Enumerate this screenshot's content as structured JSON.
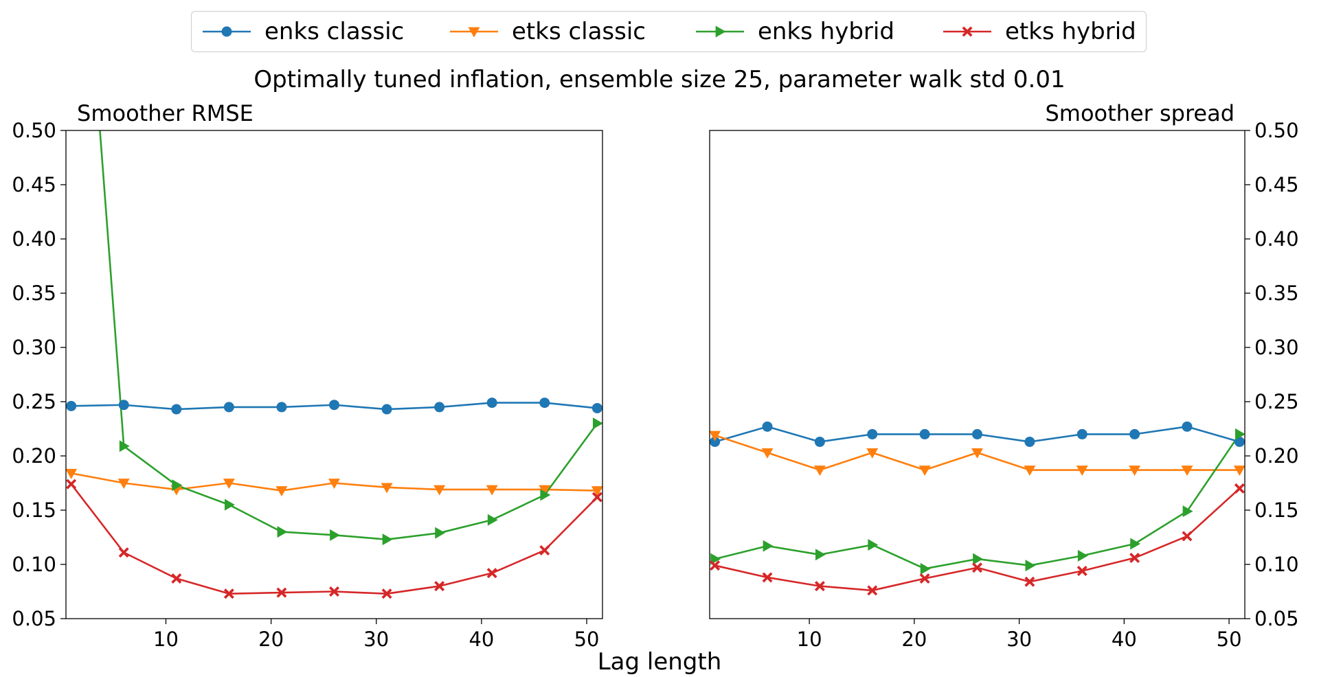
{
  "legend": [
    {
      "label": "enks classic",
      "color": "#1f77b4",
      "marker": "circle"
    },
    {
      "label": "etks classic",
      "color": "#ff7f0e",
      "marker": "triangle-down"
    },
    {
      "label": "enks hybrid",
      "color": "#2ca02c",
      "marker": "triangle-right"
    },
    {
      "label": "etks hybrid",
      "color": "#d62728",
      "marker": "x-filled"
    }
  ],
  "suptitle": "Optimally tuned inflation, ensemble size 25, parameter walk std 0.01",
  "xlabel": "Lag length",
  "chart_data": [
    {
      "type": "line",
      "title": "Smoother RMSE",
      "title_align": "left",
      "yaxis_side": "left",
      "xlabel": "Lag length",
      "ylabel": "",
      "x": [
        1,
        6,
        11,
        16,
        21,
        26,
        31,
        36,
        41,
        46,
        51
      ],
      "xlim": [
        0.5,
        51.5
      ],
      "ylim": [
        0.05,
        0.5
      ],
      "xticks": [
        10,
        20,
        30,
        40,
        50
      ],
      "yticks": [
        0.05,
        0.1,
        0.15,
        0.2,
        0.25,
        0.3,
        0.35,
        0.4,
        0.45,
        0.5
      ],
      "ytick_labels": [
        "0.05",
        "0.10",
        "0.15",
        "0.20",
        "0.25",
        "0.30",
        "0.35",
        "0.40",
        "0.45",
        "0.50"
      ],
      "grid": false,
      "series": [
        {
          "name": "enks classic",
          "values": [
            0.246,
            0.247,
            0.243,
            0.245,
            0.245,
            0.247,
            0.243,
            0.245,
            0.249,
            0.249,
            0.244
          ]
        },
        {
          "name": "etks classic",
          "values": [
            0.184,
            0.175,
            0.169,
            0.175,
            0.168,
            0.175,
            0.171,
            0.169,
            0.169,
            0.169,
            0.168
          ]
        },
        {
          "name": "enks hybrid",
          "values": [
            0.85,
            0.209,
            0.173,
            0.155,
            0.13,
            0.127,
            0.123,
            0.129,
            0.141,
            0.164,
            0.23
          ]
        },
        {
          "name": "etks hybrid",
          "values": [
            0.174,
            0.111,
            0.087,
            0.073,
            0.074,
            0.075,
            0.073,
            0.08,
            0.092,
            0.113,
            0.162
          ]
        }
      ]
    },
    {
      "type": "line",
      "title": "Smoother spread",
      "title_align": "right",
      "yaxis_side": "right",
      "xlabel": "Lag length",
      "ylabel": "",
      "x": [
        1,
        6,
        11,
        16,
        21,
        26,
        31,
        36,
        41,
        46,
        51
      ],
      "xlim": [
        0.5,
        51.5
      ],
      "ylim": [
        0.05,
        0.5
      ],
      "xticks": [
        10,
        20,
        30,
        40,
        50
      ],
      "yticks": [
        0.05,
        0.1,
        0.15,
        0.2,
        0.25,
        0.3,
        0.35,
        0.4,
        0.45,
        0.5
      ],
      "ytick_labels": [
        "0.05",
        "0.10",
        "0.15",
        "0.20",
        "0.25",
        "0.30",
        "0.35",
        "0.40",
        "0.45",
        "0.50"
      ],
      "grid": false,
      "series": [
        {
          "name": "enks classic",
          "values": [
            0.213,
            0.227,
            0.213,
            0.22,
            0.22,
            0.22,
            0.213,
            0.22,
            0.22,
            0.227,
            0.213
          ]
        },
        {
          "name": "etks classic",
          "values": [
            0.219,
            0.203,
            0.187,
            0.203,
            0.187,
            0.203,
            0.187,
            0.187,
            0.187,
            0.187,
            0.187
          ]
        },
        {
          "name": "enks hybrid",
          "values": [
            0.105,
            0.117,
            0.109,
            0.118,
            0.096,
            0.105,
            0.099,
            0.108,
            0.119,
            0.149,
            0.22
          ]
        },
        {
          "name": "etks hybrid",
          "values": [
            0.099,
            0.088,
            0.08,
            0.076,
            0.087,
            0.097,
            0.084,
            0.094,
            0.106,
            0.126,
            0.17
          ]
        }
      ]
    }
  ]
}
